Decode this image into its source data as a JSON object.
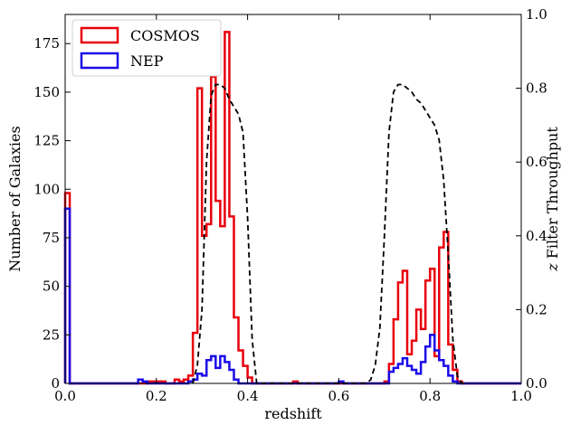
{
  "chart_data": {
    "type": "histogram",
    "xlabel": "redshift",
    "ylabel": "Number of Galaxies",
    "ylabel_right_prefix": "z",
    "ylabel_right_suffix": " Filter Throughput",
    "xlim": [
      0.0,
      1.0
    ],
    "ylim": [
      0,
      190
    ],
    "ylim_right": [
      0.0,
      1.0
    ],
    "x_ticks": [
      "0.0",
      "0.2",
      "0.4",
      "0.6",
      "0.8",
      "1.0"
    ],
    "y_ticks": [
      "0",
      "25",
      "50",
      "75",
      "100",
      "125",
      "150",
      "175"
    ],
    "y_right_ticks": [
      "0.0",
      "0.2",
      "0.4",
      "0.6",
      "0.8",
      "1.0"
    ],
    "legend_position": "upper-left",
    "bin_edges_start": 0.0,
    "bin_width": 0.01,
    "series": [
      {
        "name": "COSMOS",
        "color": "#e8000b",
        "style": "step",
        "values": [
          98,
          0,
          0,
          0,
          0,
          0,
          0,
          0,
          0,
          0,
          0,
          0,
          0,
          0,
          0,
          0,
          0,
          0,
          1,
          1,
          1,
          1,
          0,
          0,
          2,
          1,
          2,
          4,
          26,
          152,
          76,
          82,
          158,
          94,
          81,
          181,
          86,
          34,
          17,
          9,
          3,
          0,
          0,
          0,
          0,
          0,
          0,
          0,
          0,
          0,
          1,
          0,
          0,
          0,
          0,
          0,
          0,
          0,
          0,
          0,
          0,
          0,
          0,
          0,
          0,
          0,
          0,
          0,
          0,
          0,
          1,
          10,
          33,
          52,
          58,
          15,
          22,
          38,
          28,
          53,
          59,
          14,
          70,
          78,
          20,
          7,
          1,
          0,
          0,
          0,
          0,
          0,
          0,
          0,
          0,
          0,
          0,
          0,
          0,
          0
        ]
      },
      {
        "name": "NEP",
        "color": "#1a0ae8",
        "style": "step",
        "values": [
          90,
          0,
          0,
          0,
          0,
          0,
          0,
          0,
          0,
          0,
          0,
          0,
          0,
          0,
          0,
          0,
          2,
          1,
          0,
          0,
          0,
          0,
          0,
          0,
          0,
          0,
          0,
          1,
          2,
          5,
          4,
          12,
          14,
          8,
          14,
          11,
          7,
          2,
          0,
          0,
          0,
          0,
          0,
          0,
          0,
          0,
          0,
          0,
          0,
          0,
          0,
          0,
          0,
          0,
          0,
          0,
          0,
          0,
          0,
          0,
          1,
          0,
          0,
          0,
          0,
          0,
          0,
          0,
          0,
          0,
          0,
          6,
          8,
          10,
          13,
          9,
          7,
          5,
          11,
          19,
          25,
          17,
          12,
          9,
          4,
          1,
          0,
          0,
          0,
          0,
          0,
          0,
          0,
          0,
          0,
          0,
          0,
          0,
          0,
          0
        ]
      },
      {
        "name": "throughput",
        "color": "#000000",
        "style": "dashed",
        "axis": "right",
        "x": [
          0.28,
          0.29,
          0.3,
          0.31,
          0.32,
          0.33,
          0.34,
          0.35,
          0.36,
          0.37,
          0.38,
          0.39,
          0.4,
          0.41,
          0.42,
          0.66,
          0.67,
          0.68,
          0.69,
          0.7,
          0.71,
          0.72,
          0.73,
          0.74,
          0.75,
          0.76,
          0.77,
          0.78,
          0.79,
          0.8,
          0.81,
          0.82,
          0.83,
          0.84,
          0.85,
          0.86,
          0.87,
          0.88
        ],
        "y": [
          0.0,
          0.05,
          0.2,
          0.6,
          0.78,
          0.81,
          0.81,
          0.8,
          0.77,
          0.75,
          0.73,
          0.68,
          0.45,
          0.12,
          0.0,
          0.0,
          0.01,
          0.05,
          0.15,
          0.4,
          0.68,
          0.79,
          0.81,
          0.81,
          0.8,
          0.79,
          0.77,
          0.76,
          0.74,
          0.72,
          0.7,
          0.66,
          0.55,
          0.35,
          0.12,
          0.02,
          0.0,
          0.0
        ]
      }
    ]
  }
}
